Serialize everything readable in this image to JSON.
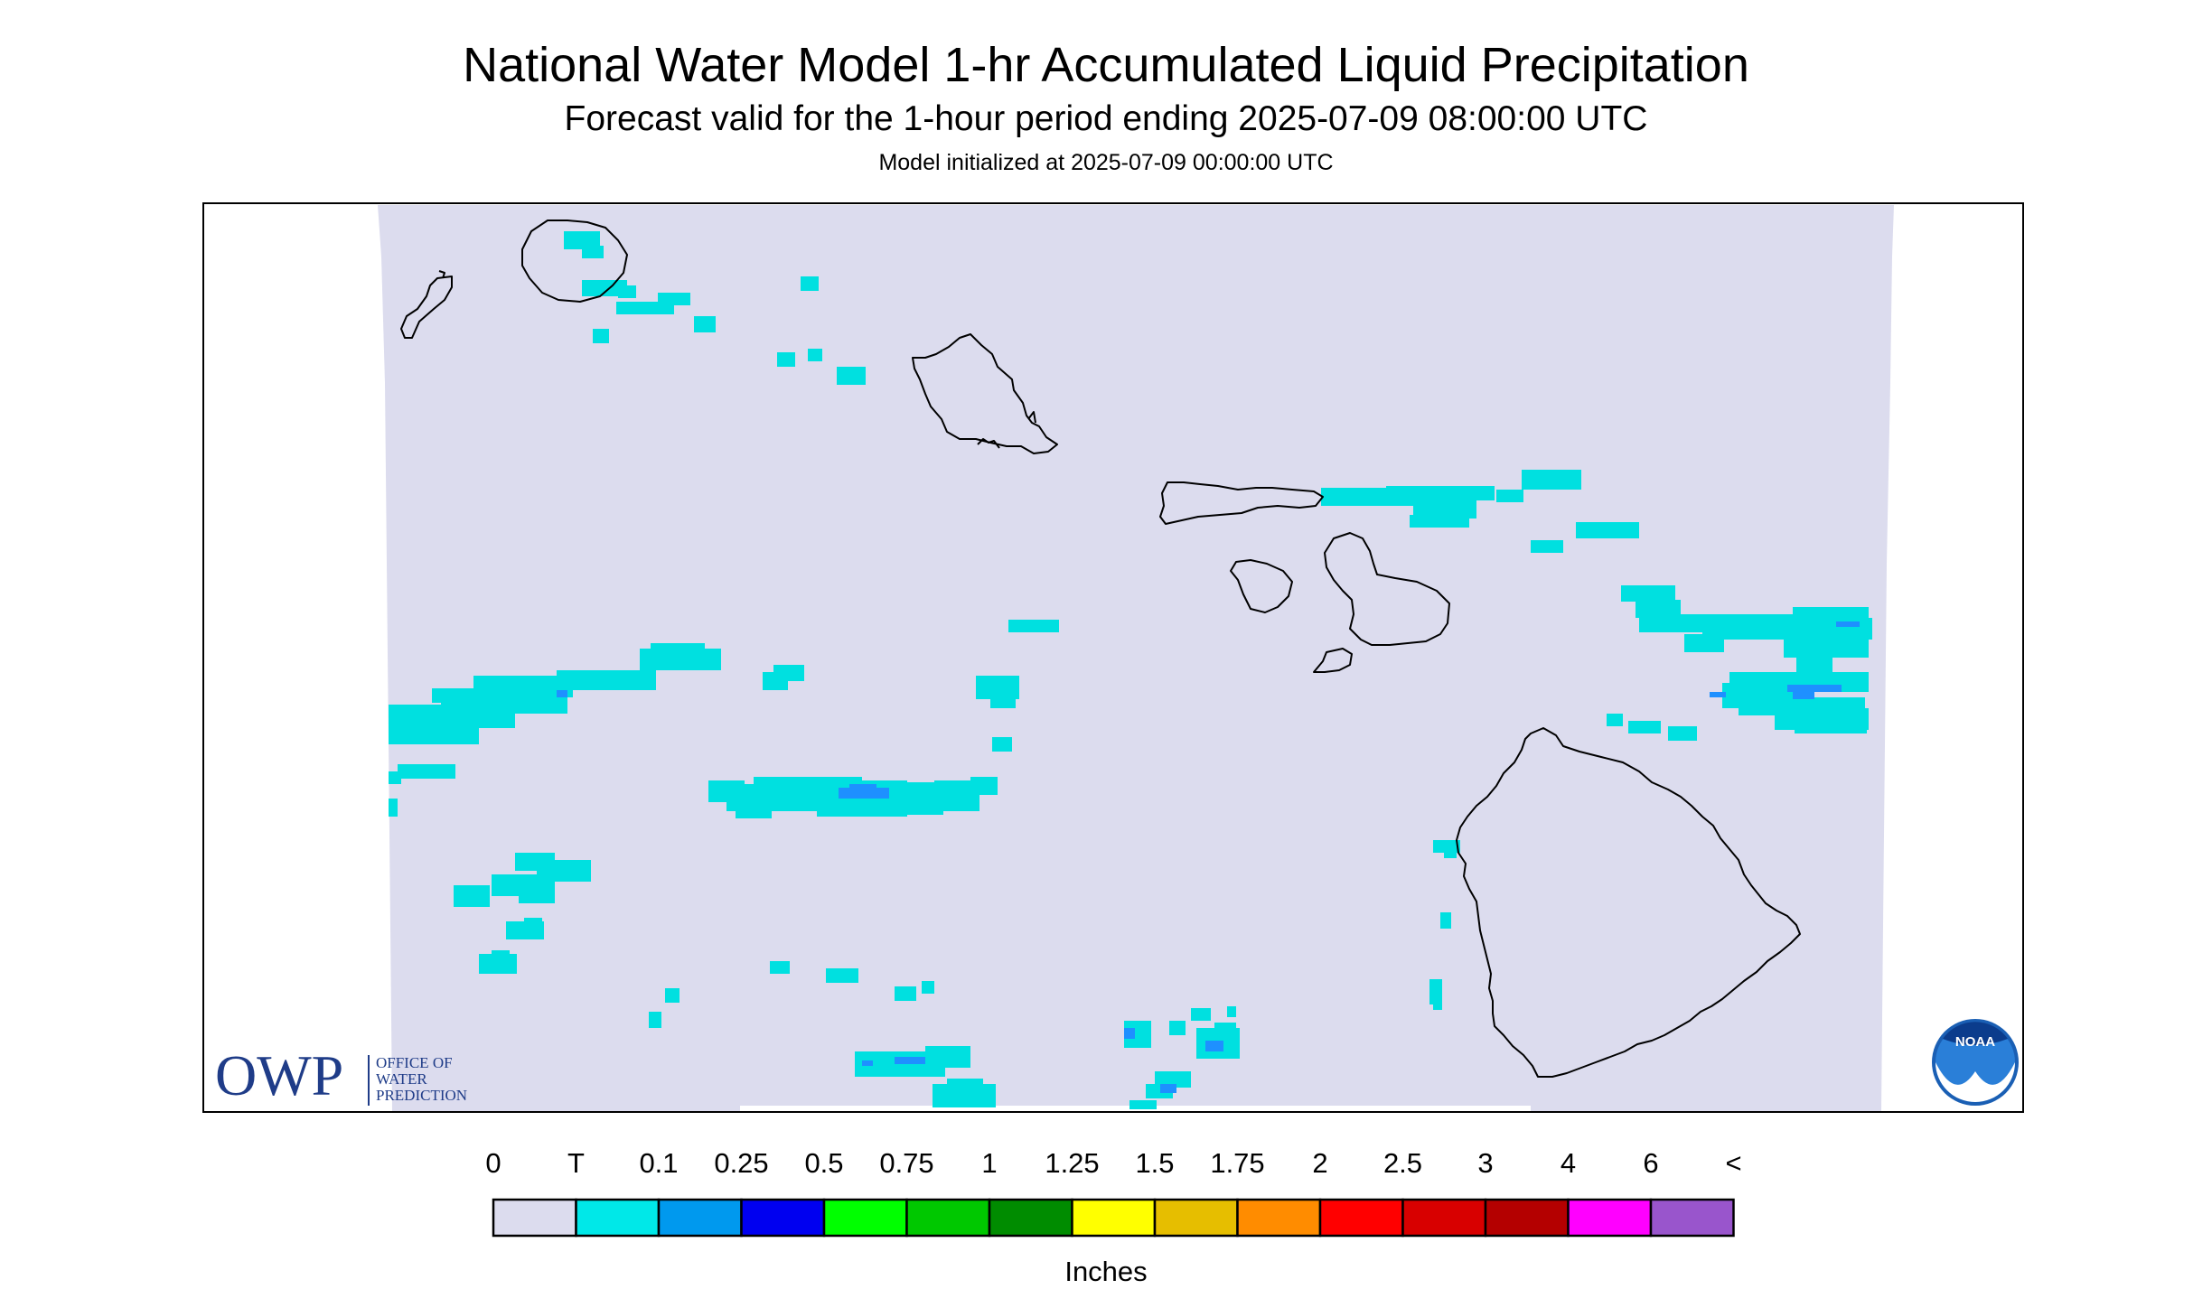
{
  "header": {
    "title": "National Water Model 1-hr Accumulated Liquid Precipitation",
    "subtitle": "Forecast valid for the 1-hour period ending 2025-07-09 08:00:00 UTC",
    "init": "Model initialized at 2025-07-09 00:00:00 UTC"
  },
  "logos": {
    "owp_text": "OWP",
    "owp_line1": "OFFICE OF",
    "owp_line2": "WATER",
    "owp_line3": "PREDICTION",
    "noaa_text": "NOAA"
  },
  "legend": {
    "units": "Inches",
    "labels": [
      "0",
      "T",
      "0.1",
      "0.25",
      "0.5",
      "0.75",
      "1",
      "1.25",
      "1.5",
      "1.75",
      "2",
      "2.5",
      "3",
      "4",
      "6",
      "<"
    ],
    "colors": [
      "#dcdcee",
      "#00e8e8",
      "#0099ee",
      "#0000f0",
      "#00ff00",
      "#00c800",
      "#008c00",
      "#ffff00",
      "#e6be00",
      "#ff8c00",
      "#ff0000",
      "#d80000",
      "#b40000",
      "#ff00ff",
      "#9955cc"
    ]
  },
  "map_colors": {
    "background": "#dcdcee",
    "trace": "#00e0e0",
    "light": "#1e90ff",
    "coast": "#000000"
  },
  "islands": [
    "Niihau",
    "Kauai",
    "Oahu",
    "Molokai",
    "Lanai",
    "Maui",
    "Kahoolawe",
    "Hawaii"
  ]
}
